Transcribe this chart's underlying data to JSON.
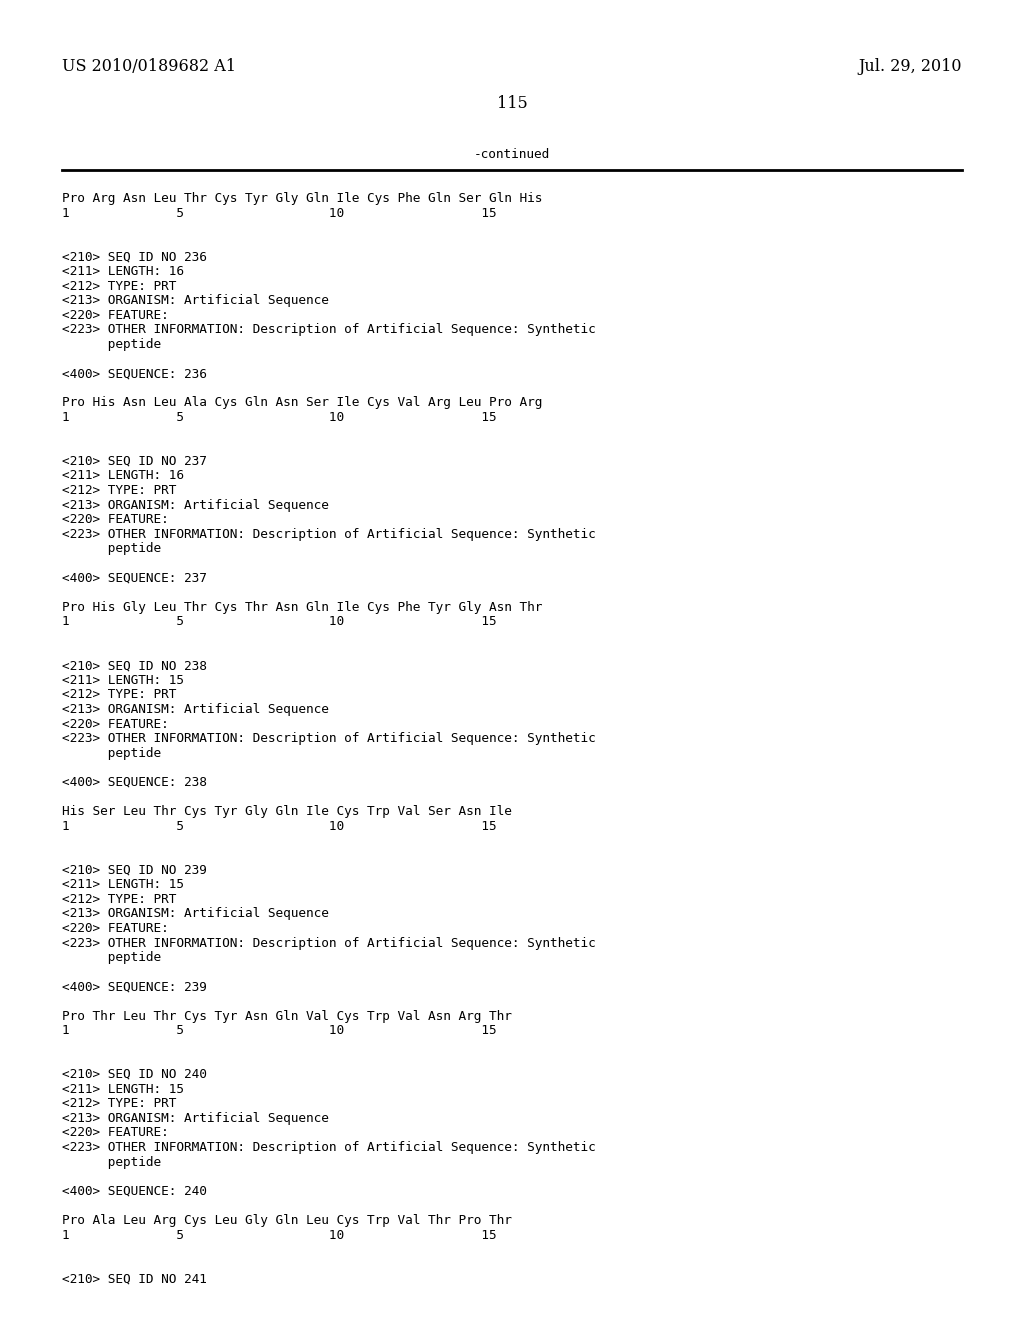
{
  "header_left": "US 2010/0189682 A1",
  "header_right": "Jul. 29, 2010",
  "page_number": "115",
  "continued_label": "-continued",
  "background_color": "#ffffff",
  "text_color": "#000000",
  "font_size_header": 11.5,
  "font_size_body": 9.2,
  "content": [
    "Pro Arg Asn Leu Thr Cys Tyr Gly Gln Ile Cys Phe Gln Ser Gln His",
    "1              5                   10                  15",
    "",
    "",
    "<210> SEQ ID NO 236",
    "<211> LENGTH: 16",
    "<212> TYPE: PRT",
    "<213> ORGANISM: Artificial Sequence",
    "<220> FEATURE:",
    "<223> OTHER INFORMATION: Description of Artificial Sequence: Synthetic",
    "      peptide",
    "",
    "<400> SEQUENCE: 236",
    "",
    "Pro His Asn Leu Ala Cys Gln Asn Ser Ile Cys Val Arg Leu Pro Arg",
    "1              5                   10                  15",
    "",
    "",
    "<210> SEQ ID NO 237",
    "<211> LENGTH: 16",
    "<212> TYPE: PRT",
    "<213> ORGANISM: Artificial Sequence",
    "<220> FEATURE:",
    "<223> OTHER INFORMATION: Description of Artificial Sequence: Synthetic",
    "      peptide",
    "",
    "<400> SEQUENCE: 237",
    "",
    "Pro His Gly Leu Thr Cys Thr Asn Gln Ile Cys Phe Tyr Gly Asn Thr",
    "1              5                   10                  15",
    "",
    "",
    "<210> SEQ ID NO 238",
    "<211> LENGTH: 15",
    "<212> TYPE: PRT",
    "<213> ORGANISM: Artificial Sequence",
    "<220> FEATURE:",
    "<223> OTHER INFORMATION: Description of Artificial Sequence: Synthetic",
    "      peptide",
    "",
    "<400> SEQUENCE: 238",
    "",
    "His Ser Leu Thr Cys Tyr Gly Gln Ile Cys Trp Val Ser Asn Ile",
    "1              5                   10                  15",
    "",
    "",
    "<210> SEQ ID NO 239",
    "<211> LENGTH: 15",
    "<212> TYPE: PRT",
    "<213> ORGANISM: Artificial Sequence",
    "<220> FEATURE:",
    "<223> OTHER INFORMATION: Description of Artificial Sequence: Synthetic",
    "      peptide",
    "",
    "<400> SEQUENCE: 239",
    "",
    "Pro Thr Leu Thr Cys Tyr Asn Gln Val Cys Trp Val Asn Arg Thr",
    "1              5                   10                  15",
    "",
    "",
    "<210> SEQ ID NO 240",
    "<211> LENGTH: 15",
    "<212> TYPE: PRT",
    "<213> ORGANISM: Artificial Sequence",
    "<220> FEATURE:",
    "<223> OTHER INFORMATION: Description of Artificial Sequence: Synthetic",
    "      peptide",
    "",
    "<400> SEQUENCE: 240",
    "",
    "Pro Ala Leu Arg Cys Leu Gly Gln Leu Cys Trp Val Thr Pro Thr",
    "1              5                   10                  15",
    "",
    "",
    "<210> SEQ ID NO 241"
  ]
}
